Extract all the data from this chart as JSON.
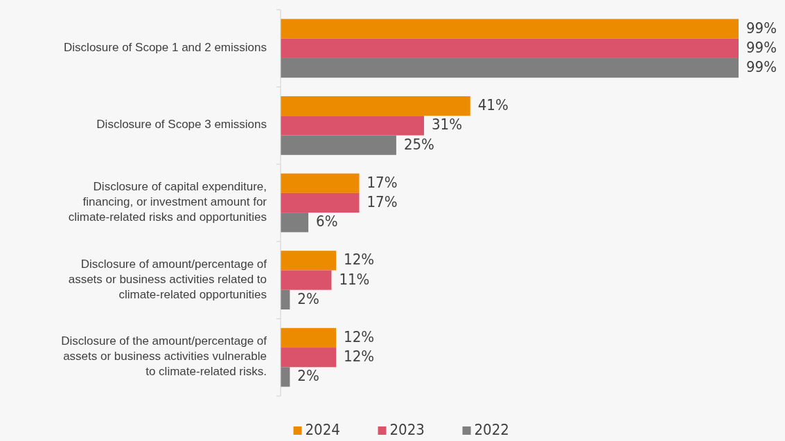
{
  "chart_data": {
    "type": "bar",
    "orientation": "horizontal",
    "categories": [
      "Disclosure of Scope 1 and 2 emissions",
      "Disclosure of Scope 3 emissions",
      "Disclosure of capital expenditure, financing, or investment amount for climate-related risks and opportunities",
      "Disclosure of amount/percentage of assets or business activities related to climate-related opportunities",
      "Disclosure of the amount/percentage of assets or business activities vulnerable to climate-related risks."
    ],
    "series": [
      {
        "name": "2024",
        "color": "#ed8b00",
        "values": [
          99,
          41,
          17,
          12,
          12
        ],
        "value_labels": [
          "99%",
          "41%",
          "17%",
          "12%",
          "12%"
        ]
      },
      {
        "name": "2023",
        "color": "#db536a",
        "values": [
          99,
          31,
          17,
          11,
          12
        ],
        "value_labels": [
          "99%",
          "31%",
          "17%",
          "11%",
          "12%"
        ]
      },
      {
        "name": "2022",
        "color": "#7f7f7f",
        "values": [
          99,
          25,
          6,
          2,
          2
        ],
        "value_labels": [
          "99%",
          "25%",
          "6%",
          "2%",
          "2%"
        ]
      }
    ],
    "legend": "bottom"
  }
}
